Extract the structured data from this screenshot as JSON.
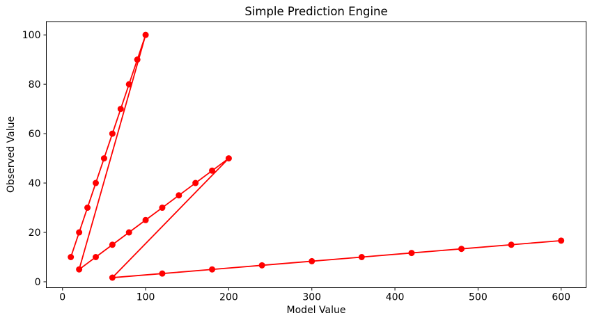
{
  "figure": {
    "title": "Simple Prediction Engine",
    "xlabel": "Model Value",
    "ylabel": "Observed Value"
  },
  "chart_data": {
    "type": "line",
    "title": "Simple Prediction Engine",
    "xlabel": "Model Value",
    "ylabel": "Observed Value",
    "grid": false,
    "legend_position": "none",
    "line_color": "#ff0000",
    "marker": "circle",
    "marker_color": "#ff0000",
    "text_color": "#000000",
    "spine_color": "#000000",
    "background_color": "#ffffff",
    "xlim": [
      -19.5,
      630
    ],
    "ylim": [
      -2.4,
      105.4
    ],
    "x_ticks": [
      0,
      100,
      200,
      300,
      400,
      500,
      600
    ],
    "y_ticks": [
      0,
      20,
      40,
      60,
      80,
      100
    ],
    "drawn_as_single_polyline": true,
    "segments": [
      {
        "points": [
          [
            10,
            10
          ],
          [
            20,
            20
          ],
          [
            30,
            30
          ],
          [
            40,
            40
          ],
          [
            50,
            50
          ],
          [
            60,
            60
          ],
          [
            70,
            70
          ],
          [
            80,
            80
          ],
          [
            90,
            90
          ],
          [
            100,
            100
          ]
        ]
      },
      {
        "points": [
          [
            20,
            5
          ],
          [
            40,
            10
          ],
          [
            60,
            15
          ],
          [
            80,
            20
          ],
          [
            100,
            25
          ],
          [
            120,
            30
          ],
          [
            140,
            35
          ],
          [
            160,
            40
          ],
          [
            180,
            45
          ],
          [
            200,
            50
          ]
        ]
      },
      {
        "points": [
          [
            60,
            1.67
          ],
          [
            120,
            3.33
          ],
          [
            180,
            5
          ],
          [
            240,
            6.67
          ],
          [
            300,
            8.33
          ],
          [
            360,
            10
          ],
          [
            420,
            11.67
          ],
          [
            480,
            13.33
          ],
          [
            540,
            15
          ],
          [
            600,
            16.67
          ]
        ]
      }
    ]
  }
}
